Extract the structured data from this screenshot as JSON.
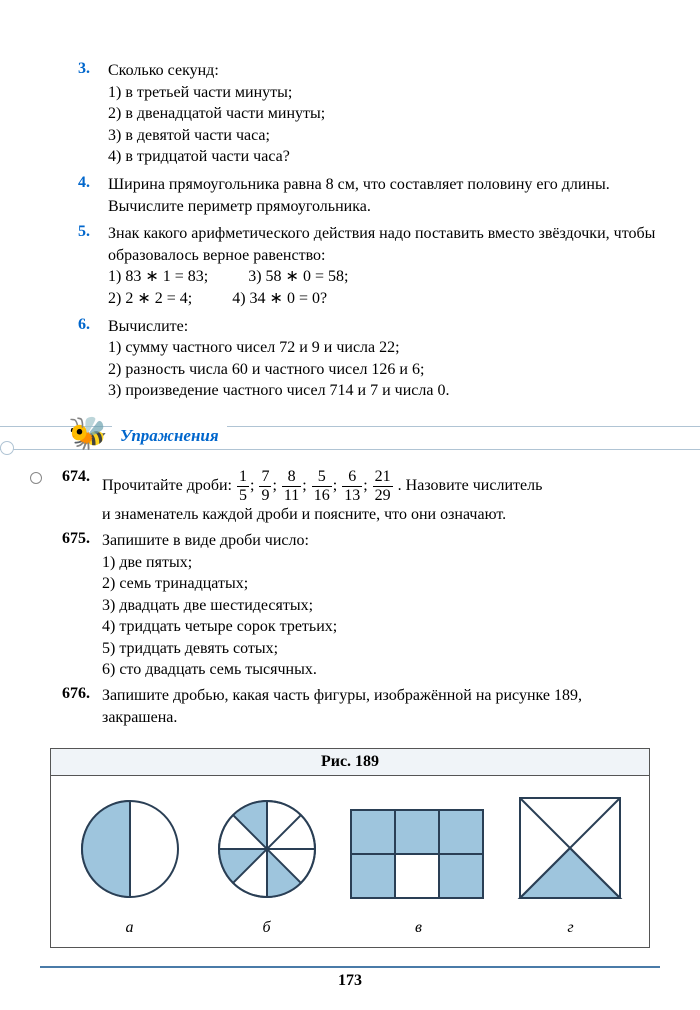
{
  "problems": [
    {
      "num": "3.",
      "lead": "Сколько секунд:",
      "subs": [
        "1) в третьей части минуты;",
        "2) в двенадцатой части минуты;",
        "3) в девятой части часа;",
        "4) в тридцатой части часа?"
      ]
    },
    {
      "num": "4.",
      "lead": "Ширина прямоугольника равна 8 см, что составляет половину его длины. Вычислите периметр прямоугольника."
    },
    {
      "num": "5.",
      "lead": "Знак какого арифметического действия надо поставить вместо звёздочки, чтобы образовалось верное равенство:",
      "eqs": [
        [
          "1) 83 ∗ 1 = 83;",
          "3) 58 ∗ 0 = 58;"
        ],
        [
          "2) 2 ∗ 2 = 4;",
          "4) 34 ∗ 0 = 0?"
        ]
      ]
    },
    {
      "num": "6.",
      "lead": "Вычислите:",
      "subs": [
        "1) сумму частного чисел 72 и 9 и числа 22;",
        "2) разность числа 60 и частного чисел 126 и 6;",
        "3) произведение частного чисел 714 и 7 и числа 0."
      ]
    }
  ],
  "section_title": "Упражнения",
  "ex674": {
    "num": "674.",
    "lead1": "Прочитайте дроби: ",
    "fracs": [
      {
        "n": "1",
        "d": "5"
      },
      {
        "n": "7",
        "d": "9"
      },
      {
        "n": "8",
        "d": "11"
      },
      {
        "n": "5",
        "d": "16"
      },
      {
        "n": "6",
        "d": "13"
      },
      {
        "n": "21",
        "d": "29"
      }
    ],
    "lead2": ". Назовите числитель",
    "line2": "и знаменатель каждой дроби и поясните, что они означают."
  },
  "ex675": {
    "num": "675.",
    "lead": "Запишите в виде дроби число:",
    "subs": [
      "1) две пятых;",
      "2) семь тринадцатых;",
      "3) двадцать две шестидесятых;",
      "4) тридцать четыре сорок третьих;",
      "5) тридцать девять сотых;",
      "6) сто двадцать семь тысячных."
    ]
  },
  "ex676": {
    "num": "676.",
    "lead": "Запишите дробью, какая часть фигуры, изображённой на рисунке 189, закрашена."
  },
  "figure": {
    "title": "Рис. 189",
    "labels": [
      "а",
      "б",
      "в",
      "г"
    ],
    "fill": "#9ec5dd",
    "stroke": "#2a3f55"
  },
  "page_number": "173"
}
